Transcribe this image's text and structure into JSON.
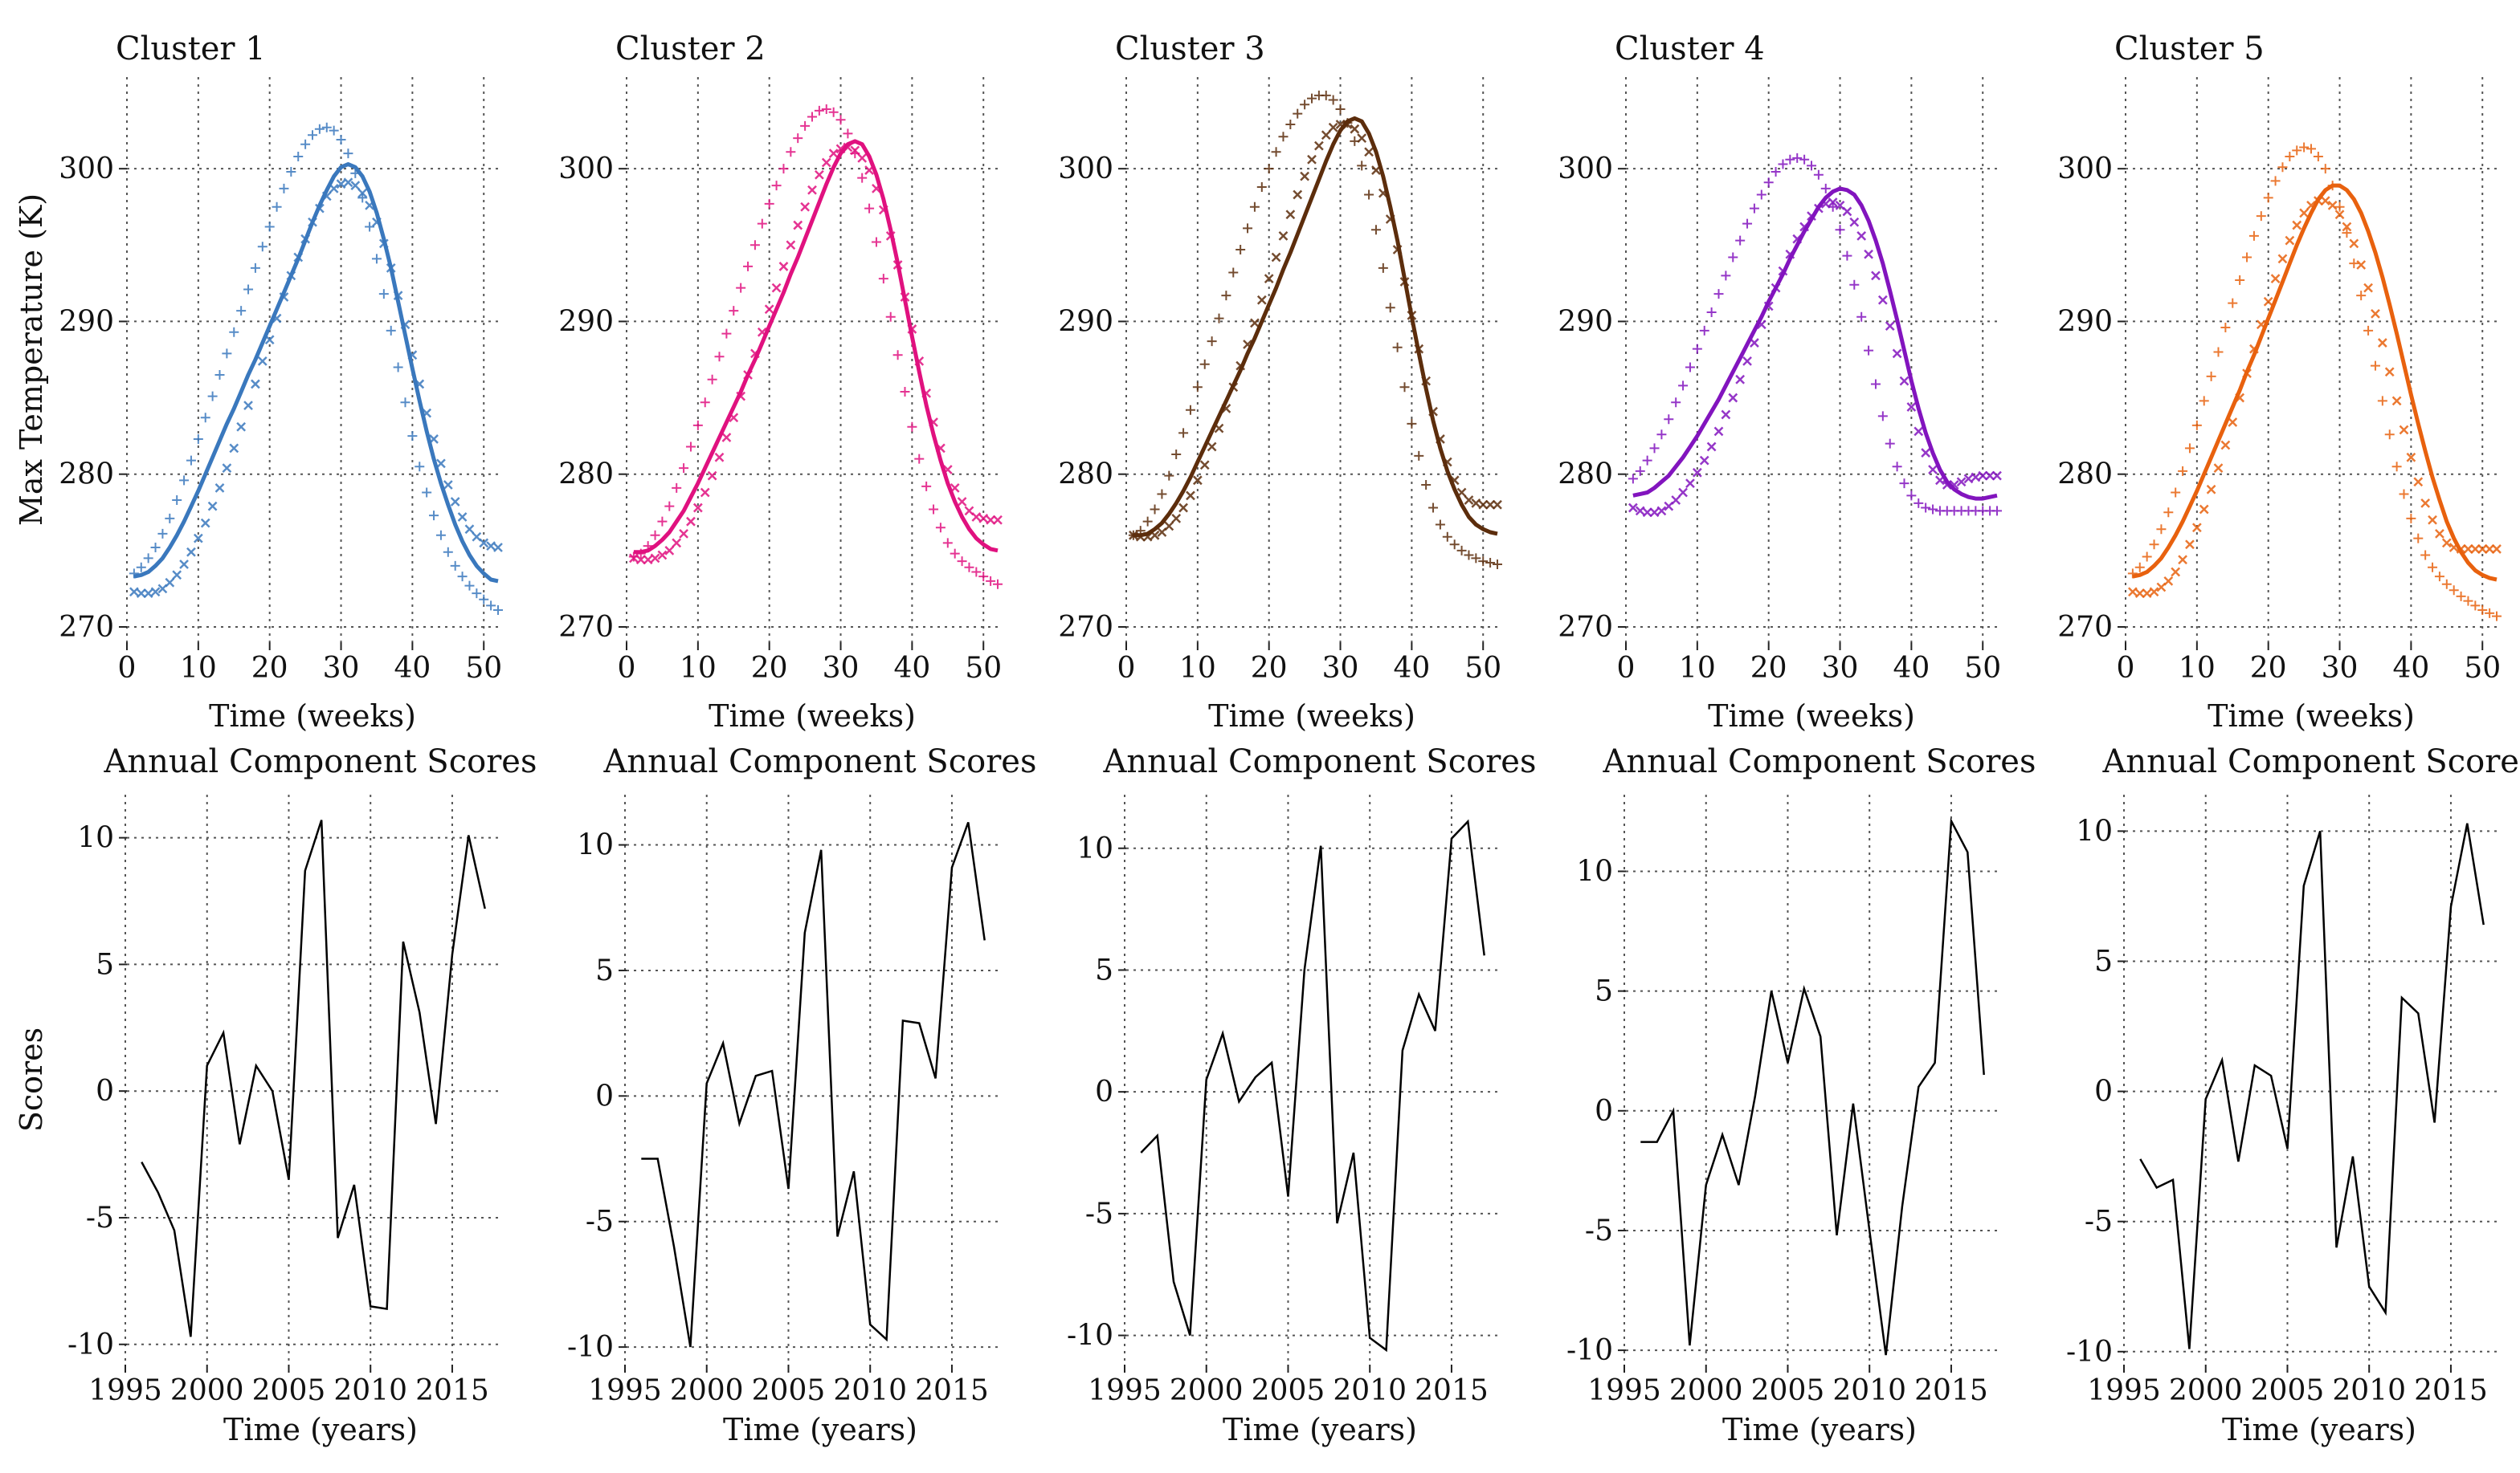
{
  "chart_data": {
    "type": "line",
    "layout": "2 rows x 5 columns",
    "temperature_panels": {
      "xlabel": "Time (weeks)",
      "ylabel": "Max Temperature (K)",
      "xlim": [
        0,
        52
      ],
      "ylim": [
        269,
        306
      ],
      "xticks": [
        0,
        10,
        20,
        30,
        40,
        50
      ],
      "yticks": [
        270,
        280,
        290,
        300
      ],
      "x": [
        1,
        2,
        3,
        4,
        5,
        6,
        7,
        8,
        9,
        10,
        11,
        12,
        13,
        14,
        15,
        16,
        17,
        18,
        19,
        20,
        21,
        22,
        23,
        24,
        25,
        26,
        27,
        28,
        29,
        30,
        31,
        32,
        33,
        34,
        35,
        36,
        37,
        38,
        39,
        40,
        41,
        42,
        43,
        44,
        45,
        46,
        47,
        48,
        49,
        50,
        51,
        52
      ],
      "series_description": [
        "fitted mean curve (solid line)",
        "observed weekly max, one year (plus markers)",
        "observed weekly max, other year (x markers)"
      ]
    },
    "score_panels": {
      "title": "Annual Component Scores",
      "xlabel": "Time (years)",
      "ylabel": "Scores",
      "xlim": [
        1995,
        2018
      ],
      "xticks": [
        1995,
        2000,
        2005,
        2010,
        2015
      ],
      "yticks": [
        -10,
        -5,
        0,
        5,
        10
      ],
      "years": [
        1996,
        1997,
        1998,
        1999,
        2000,
        2001,
        2002,
        2003,
        2004,
        2005,
        2006,
        2007,
        2008,
        2009,
        2010,
        2011,
        2012,
        2013,
        2014,
        2015,
        2016,
        2017
      ]
    },
    "clusters": [
      {
        "name": "Cluster 1",
        "color": "#3a78bd",
        "fit": [
          273.3,
          273.4,
          273.6,
          274.0,
          274.5,
          275.2,
          276.0,
          276.9,
          277.9,
          278.9,
          280.0,
          281.1,
          282.2,
          283.3,
          284.3,
          285.4,
          286.5,
          287.5,
          288.6,
          289.7,
          290.8,
          291.9,
          293.0,
          294.1,
          295.3,
          296.5,
          297.6,
          298.6,
          299.5,
          300.1,
          300.3,
          300.1,
          299.5,
          298.5,
          297.1,
          295.4,
          293.5,
          291.3,
          289.1,
          286.9,
          284.8,
          282.8,
          281.0,
          279.4,
          278.0,
          276.7,
          275.6,
          274.7,
          274.0,
          273.5,
          273.1,
          273.0
        ],
        "obs_plus": [
          273.5,
          273.9,
          274.5,
          275.2,
          276.1,
          277.1,
          278.3,
          279.6,
          280.9,
          282.3,
          283.7,
          285.1,
          286.5,
          287.9,
          289.3,
          290.7,
          292.1,
          293.5,
          294.9,
          296.2,
          297.5,
          298.7,
          299.8,
          300.8,
          301.6,
          302.2,
          302.6,
          302.7,
          302.5,
          301.9,
          301.0,
          299.7,
          298.1,
          296.2,
          294.1,
          291.8,
          289.4,
          287.0,
          284.7,
          282.5,
          280.5,
          278.8,
          277.3,
          276.0,
          274.9,
          274.0,
          273.3,
          272.7,
          272.2,
          271.8,
          271.4,
          271.1
        ],
        "obs_x": [
          272.3,
          272.2,
          272.2,
          272.3,
          272.5,
          272.9,
          273.4,
          274.1,
          274.9,
          275.8,
          276.8,
          277.9,
          279.1,
          280.4,
          281.7,
          283.1,
          284.5,
          285.9,
          287.4,
          288.8,
          290.2,
          291.6,
          293.0,
          294.2,
          295.4,
          296.5,
          297.4,
          298.2,
          298.7,
          299.0,
          299.1,
          298.9,
          298.4,
          297.6,
          296.5,
          295.1,
          293.5,
          291.7,
          289.8,
          287.8,
          285.9,
          284.0,
          282.3,
          280.7,
          279.3,
          278.2,
          277.2,
          276.4,
          275.9,
          275.5,
          275.3,
          275.2
        ],
        "scores": [
          -2.8,
          -4.0,
          -5.5,
          -9.7,
          1.0,
          2.3,
          -2.1,
          1.0,
          0.0,
          -3.5,
          8.7,
          10.7,
          -5.8,
          -3.7,
          -8.5,
          -8.6,
          5.9,
          3.1,
          -1.3,
          5.4,
          10.1,
          7.2
        ]
      },
      {
        "name": "Cluster 2",
        "color": "#e0117f",
        "fit": [
          274.9,
          274.9,
          275.0,
          275.3,
          275.7,
          276.2,
          276.9,
          277.6,
          278.5,
          279.4,
          280.4,
          281.4,
          282.4,
          283.4,
          284.4,
          285.4,
          286.5,
          287.5,
          288.6,
          289.7,
          290.8,
          291.9,
          293.1,
          294.2,
          295.4,
          296.6,
          297.8,
          299.0,
          300.1,
          301.0,
          301.6,
          301.8,
          301.6,
          300.8,
          299.6,
          298.0,
          296.0,
          293.8,
          291.4,
          289.0,
          286.7,
          284.5,
          282.6,
          280.9,
          279.4,
          278.2,
          277.2,
          276.4,
          275.8,
          275.4,
          275.1,
          275.0
        ],
        "obs_plus": [
          274.6,
          274.8,
          275.3,
          276.0,
          276.9,
          277.9,
          279.1,
          280.4,
          281.8,
          283.2,
          284.7,
          286.2,
          287.7,
          289.2,
          290.7,
          292.2,
          293.6,
          295.0,
          296.4,
          297.7,
          298.9,
          300.0,
          301.1,
          302.0,
          302.8,
          303.4,
          303.8,
          303.9,
          303.7,
          303.2,
          302.3,
          301.0,
          299.4,
          297.4,
          295.2,
          292.8,
          290.3,
          287.8,
          285.4,
          283.1,
          281.0,
          279.2,
          277.7,
          276.5,
          275.5,
          274.8,
          274.3,
          273.9,
          273.6,
          273.3,
          273.0,
          272.8
        ],
        "obs_x": [
          274.5,
          274.4,
          274.4,
          274.5,
          274.7,
          275.0,
          275.5,
          276.1,
          276.9,
          277.8,
          278.8,
          279.9,
          281.1,
          282.4,
          283.7,
          285.1,
          286.5,
          287.9,
          289.3,
          290.8,
          292.2,
          293.6,
          295.0,
          296.3,
          297.5,
          298.6,
          299.6,
          300.4,
          301.0,
          301.3,
          301.4,
          301.2,
          300.7,
          299.9,
          298.7,
          297.3,
          295.6,
          293.7,
          291.6,
          289.5,
          287.4,
          285.3,
          283.4,
          281.7,
          280.3,
          279.1,
          278.2,
          277.6,
          277.2,
          277.1,
          277.0,
          277.0
        ],
        "scores": [
          -2.5,
          -2.5,
          -6.0,
          -10.0,
          0.5,
          2.1,
          -1.1,
          0.8,
          1.0,
          -3.7,
          6.5,
          9.8,
          -5.6,
          -3.0,
          -9.1,
          -9.7,
          3.0,
          2.9,
          0.7,
          9.1,
          10.9,
          6.2
        ]
      },
      {
        "name": "Cluster 3",
        "color": "#5c2d0c",
        "fit": [
          276.0,
          276.0,
          276.1,
          276.4,
          276.8,
          277.4,
          278.1,
          278.9,
          279.8,
          280.8,
          281.8,
          282.8,
          283.8,
          284.8,
          285.8,
          286.8,
          287.9,
          288.9,
          290.0,
          291.1,
          292.2,
          293.4,
          294.5,
          295.7,
          296.9,
          298.1,
          299.3,
          300.5,
          301.6,
          302.5,
          303.1,
          303.3,
          303.1,
          302.3,
          301.1,
          299.5,
          297.5,
          295.3,
          292.8,
          290.3,
          287.9,
          285.6,
          283.5,
          281.7,
          280.2,
          279.0,
          278.0,
          277.2,
          276.7,
          276.4,
          276.2,
          276.1
        ],
        "obs_plus": [
          276.0,
          276.3,
          276.9,
          277.7,
          278.7,
          279.9,
          281.3,
          282.7,
          284.2,
          285.7,
          287.2,
          288.7,
          290.2,
          291.7,
          293.2,
          294.7,
          296.1,
          297.5,
          298.8,
          300.0,
          301.1,
          302.1,
          302.9,
          303.6,
          304.2,
          304.6,
          304.8,
          304.8,
          304.5,
          303.9,
          303.0,
          301.8,
          300.2,
          298.3,
          296.0,
          293.5,
          290.9,
          288.3,
          285.7,
          283.3,
          281.2,
          279.3,
          277.8,
          276.7,
          275.9,
          275.4,
          275.0,
          274.7,
          274.5,
          274.3,
          274.2,
          274.1
        ],
        "obs_x": [
          276.0,
          275.9,
          275.9,
          276.0,
          276.2,
          276.6,
          277.1,
          277.8,
          278.6,
          279.6,
          280.6,
          281.8,
          283.0,
          284.3,
          285.7,
          287.1,
          288.5,
          289.9,
          291.4,
          292.8,
          294.2,
          295.6,
          297.0,
          298.3,
          299.5,
          300.6,
          301.5,
          302.2,
          302.7,
          302.9,
          302.9,
          302.6,
          302.0,
          301.1,
          299.9,
          298.4,
          296.7,
          294.7,
          292.6,
          290.4,
          288.2,
          286.1,
          284.1,
          282.3,
          280.8,
          279.6,
          278.8,
          278.3,
          278.1,
          278.0,
          278.0,
          278.0
        ],
        "scores": [
          -2.5,
          -1.8,
          -7.8,
          -10.0,
          0.5,
          2.4,
          -0.4,
          0.6,
          1.2,
          -4.3,
          5.0,
          10.1,
          -5.4,
          -2.5,
          -10.1,
          -10.6,
          1.7,
          4.0,
          2.5,
          10.4,
          11.1,
          5.6
        ]
      },
      {
        "name": "Cluster 4",
        "color": "#8214be",
        "fit": [
          278.6,
          278.7,
          278.8,
          279.1,
          279.5,
          279.9,
          280.5,
          281.1,
          281.8,
          282.5,
          283.3,
          284.1,
          284.9,
          285.8,
          286.7,
          287.6,
          288.5,
          289.4,
          290.3,
          291.3,
          292.2,
          293.1,
          294.1,
          295.0,
          295.9,
          296.7,
          297.5,
          298.1,
          298.5,
          298.7,
          298.6,
          298.3,
          297.6,
          296.6,
          295.3,
          293.8,
          292.0,
          290.1,
          288.1,
          286.1,
          284.3,
          282.7,
          281.4,
          280.3,
          279.5,
          279.0,
          278.7,
          278.5,
          278.4,
          278.4,
          278.5,
          278.6
        ],
        "obs_plus": [
          279.7,
          280.2,
          280.9,
          281.7,
          282.6,
          283.6,
          284.7,
          285.8,
          287.0,
          288.2,
          289.4,
          290.6,
          291.8,
          293.0,
          294.2,
          295.3,
          296.4,
          297.4,
          298.3,
          299.1,
          299.8,
          300.3,
          300.6,
          300.7,
          300.6,
          300.2,
          299.6,
          298.7,
          297.5,
          296.0,
          294.3,
          292.4,
          290.3,
          288.1,
          285.9,
          283.8,
          282.0,
          280.5,
          279.4,
          278.6,
          278.1,
          277.8,
          277.7,
          277.6,
          277.6,
          277.6,
          277.6,
          277.6,
          277.6,
          277.6,
          277.6,
          277.6
        ],
        "obs_x": [
          277.8,
          277.6,
          277.5,
          277.5,
          277.6,
          277.9,
          278.3,
          278.8,
          279.4,
          280.1,
          280.9,
          281.8,
          282.8,
          283.9,
          285.0,
          286.2,
          287.4,
          288.6,
          289.8,
          291.0,
          292.2,
          293.3,
          294.4,
          295.4,
          296.2,
          296.9,
          297.4,
          297.7,
          297.8,
          297.6,
          297.2,
          296.5,
          295.6,
          294.4,
          293.0,
          291.4,
          289.7,
          287.9,
          286.1,
          284.4,
          282.8,
          281.4,
          280.3,
          279.6,
          279.3,
          279.3,
          279.5,
          279.7,
          279.8,
          279.9,
          279.9,
          279.9
        ],
        "scores": [
          -1.3,
          -1.3,
          0.0,
          -9.8,
          -3.1,
          -1.0,
          -3.1,
          0.6,
          5.0,
          2.0,
          5.1,
          3.1,
          -5.2,
          0.3,
          -5.0,
          -10.2,
          -4.0,
          1.0,
          2.0,
          12.1,
          10.8,
          1.5
        ]
      },
      {
        "name": "Cluster 5",
        "color": "#e8610e",
        "fit": [
          273.3,
          273.4,
          273.6,
          274.0,
          274.5,
          275.2,
          276.0,
          276.9,
          277.9,
          278.9,
          280.0,
          281.1,
          282.2,
          283.3,
          284.4,
          285.5,
          286.7,
          287.8,
          289.0,
          290.2,
          291.4,
          292.6,
          293.8,
          295.0,
          296.1,
          297.1,
          298.0,
          298.6,
          298.9,
          298.9,
          298.6,
          298.0,
          297.1,
          295.9,
          294.5,
          292.9,
          291.1,
          289.2,
          287.2,
          285.2,
          283.3,
          281.5,
          279.8,
          278.3,
          276.9,
          275.8,
          274.9,
          274.2,
          273.7,
          273.4,
          273.2,
          273.1
        ],
        "obs_plus": [
          273.5,
          273.9,
          274.6,
          275.4,
          276.4,
          277.5,
          278.8,
          280.2,
          281.7,
          283.2,
          284.8,
          286.4,
          288.0,
          289.6,
          291.2,
          292.7,
          294.2,
          295.6,
          296.9,
          298.1,
          299.2,
          300.1,
          300.8,
          301.2,
          301.4,
          301.3,
          300.8,
          300.0,
          298.9,
          297.5,
          295.8,
          293.8,
          291.7,
          289.4,
          287.1,
          284.8,
          282.6,
          280.5,
          278.7,
          277.1,
          275.8,
          274.7,
          273.9,
          273.3,
          272.8,
          272.4,
          272.0,
          271.7,
          271.4,
          271.1,
          270.9,
          270.7
        ],
        "obs_x": [
          272.3,
          272.2,
          272.2,
          272.3,
          272.6,
          273.0,
          273.6,
          274.4,
          275.4,
          276.5,
          277.7,
          279.0,
          280.4,
          281.9,
          283.4,
          285.0,
          286.6,
          288.2,
          289.8,
          291.3,
          292.8,
          294.1,
          295.3,
          296.3,
          297.1,
          297.6,
          297.9,
          297.9,
          297.6,
          297.0,
          296.2,
          295.1,
          293.7,
          292.2,
          290.5,
          288.6,
          286.7,
          284.8,
          282.9,
          281.1,
          279.5,
          278.1,
          277.0,
          276.1,
          275.5,
          275.2,
          275.1,
          275.1,
          275.1,
          275.1,
          275.1,
          275.1
        ],
        "scores": [
          -2.6,
          -3.7,
          -3.4,
          -9.9,
          -0.3,
          1.2,
          -2.7,
          1.0,
          0.6,
          -2.2,
          7.9,
          10.0,
          -6.0,
          -2.5,
          -7.5,
          -8.5,
          3.6,
          3.0,
          -1.2,
          7.1,
          10.3,
          6.4
        ]
      }
    ],
    "score_ylims": [
      [
        -10.8,
        11.7
      ],
      [
        -10.7,
        12.0
      ],
      [
        -11.2,
        12.2
      ],
      [
        -10.6,
        13.2
      ],
      [
        -10.5,
        11.4
      ]
    ]
  }
}
